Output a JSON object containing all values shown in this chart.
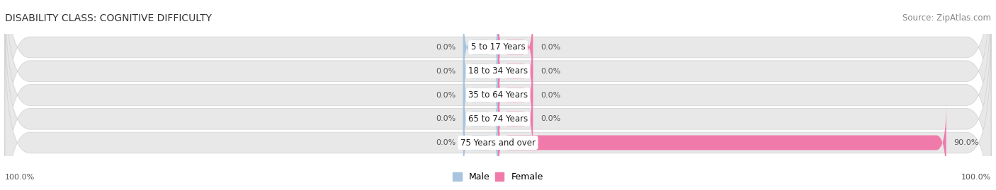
{
  "title": "DISABILITY CLASS: COGNITIVE DIFFICULTY",
  "source": "Source: ZipAtlas.com",
  "categories": [
    "5 to 17 Years",
    "18 to 34 Years",
    "35 to 64 Years",
    "65 to 74 Years",
    "75 Years and over"
  ],
  "male_values": [
    0.0,
    0.0,
    0.0,
    0.0,
    0.0
  ],
  "female_values": [
    0.0,
    0.0,
    0.0,
    0.0,
    90.0
  ],
  "male_color": "#a8c4df",
  "female_color": "#f07aaa",
  "bar_bg_color": "#e8e8e8",
  "bar_bg_border_color": "#d0d0d0",
  "stub_size": 7.0,
  "bar_height": 0.62,
  "xlim_left": -100,
  "xlim_right": 100,
  "title_fontsize": 10,
  "source_fontsize": 8.5,
  "label_fontsize": 8,
  "category_fontsize": 8.5,
  "legend_fontsize": 9,
  "value_label_color": "#555555",
  "background_color": "#ffffff",
  "axis_label_left": "100.0%",
  "axis_label_right": "100.0%",
  "center_label_bg": "#ffffff"
}
